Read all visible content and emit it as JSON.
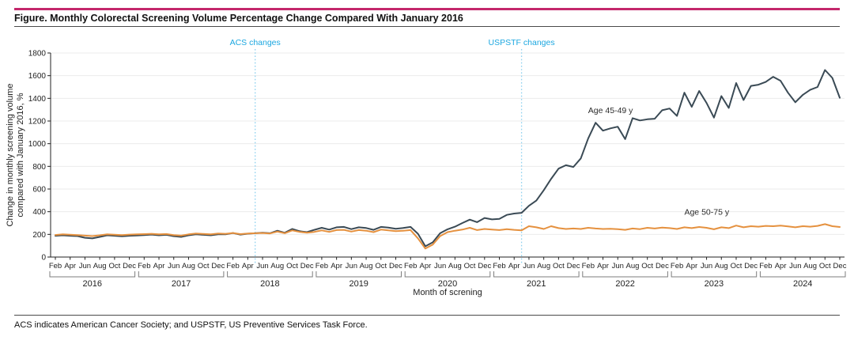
{
  "page": {
    "title": "Figure. Monthly Colorectal Screening Volume Percentage Change Compared With January 2016",
    "footnote": "ACS indicates American Cancer Society; and USPSTF, US Preventive Services Task Force."
  },
  "colors": {
    "accent_rule": "#C4276B",
    "grid": "#EBEBEB",
    "axis": "#222222",
    "bracket": "#7d7d7d",
    "annotation_line": "#8ED1EF",
    "annotation_text": "#1CA7E0"
  },
  "chart_data": {
    "type": "line",
    "title": "Monthly Colorectal Screening Volume Percentage Change Compared With January 2016",
    "xlabel": "Month of screning",
    "ylabel_line1": "Change in monthly screening volume",
    "ylabel_line2": "compared with January 2016, %",
    "ylim": [
      0,
      1800
    ],
    "ytick_step": 200,
    "grid": "horizontal",
    "x_start": "Feb 2016",
    "x_end": "Dec 2024",
    "years": [
      "2016",
      "2017",
      "2018",
      "2019",
      "2020",
      "2021",
      "2022",
      "2023",
      "2024"
    ],
    "month_tick_labels": [
      "Feb",
      "Apr",
      "Jun",
      "Aug",
      "Oct",
      "Dec"
    ],
    "annotations": [
      {
        "label": "ACS changes",
        "month": "May 2018",
        "month_index": 27
      },
      {
        "label": "USPSTF changes",
        "month": "May 2021",
        "month_index": 63
      }
    ],
    "series": [
      {
        "name": "Age 45-49 y",
        "color": "#3A4A55",
        "label_anchor": {
          "month_index": 72,
          "value": 1270
        },
        "values": [
          188,
          192,
          188,
          185,
          170,
          165,
          178,
          192,
          188,
          183,
          188,
          190,
          194,
          198,
          192,
          196,
          184,
          178,
          192,
          200,
          196,
          192,
          200,
          200,
          212,
          198,
          206,
          210,
          214,
          210,
          232,
          214,
          248,
          228,
          220,
          240,
          258,
          242,
          262,
          266,
          246,
          262,
          256,
          240,
          266,
          260,
          250,
          256,
          266,
          205,
          95,
          130,
          210,
          245,
          268,
          300,
          330,
          308,
          345,
          332,
          336,
          372,
          384,
          390,
          452,
          498,
          590,
          690,
          780,
          810,
          795,
          870,
          1045,
          1185,
          1115,
          1135,
          1150,
          1040,
          1225,
          1205,
          1215,
          1220,
          1295,
          1310,
          1245,
          1450,
          1325,
          1465,
          1360,
          1230,
          1420,
          1315,
          1535,
          1385,
          1510,
          1520,
          1545,
          1590,
          1555,
          1450,
          1365,
          1430,
          1475,
          1500,
          1650,
          1580,
          1405
        ]
      },
      {
        "name": "Age 50-75 y",
        "color": "#E5913F",
        "label_anchor": {
          "month_index": 85,
          "value": 372
        },
        "values": [
          195,
          200,
          197,
          194,
          189,
          185,
          192,
          200,
          197,
          194,
          198,
          200,
          202,
          205,
          200,
          203,
          194,
          189,
          200,
          207,
          204,
          200,
          207,
          205,
          212,
          202,
          208,
          210,
          212,
          208,
          225,
          210,
          235,
          222,
          215,
          222,
          235,
          222,
          238,
          240,
          225,
          238,
          232,
          220,
          242,
          236,
          228,
          232,
          238,
          165,
          75,
          110,
          185,
          220,
          232,
          242,
          258,
          238,
          248,
          242,
          238,
          246,
          240,
          236,
          272,
          262,
          248,
          272,
          255,
          248,
          252,
          248,
          258,
          252,
          248,
          250,
          246,
          240,
          252,
          246,
          258,
          252,
          260,
          255,
          248,
          262,
          255,
          265,
          258,
          245,
          262,
          255,
          278,
          262,
          272,
          268,
          275,
          272,
          278,
          270,
          262,
          272,
          268,
          275,
          290,
          272,
          265
        ]
      }
    ]
  }
}
